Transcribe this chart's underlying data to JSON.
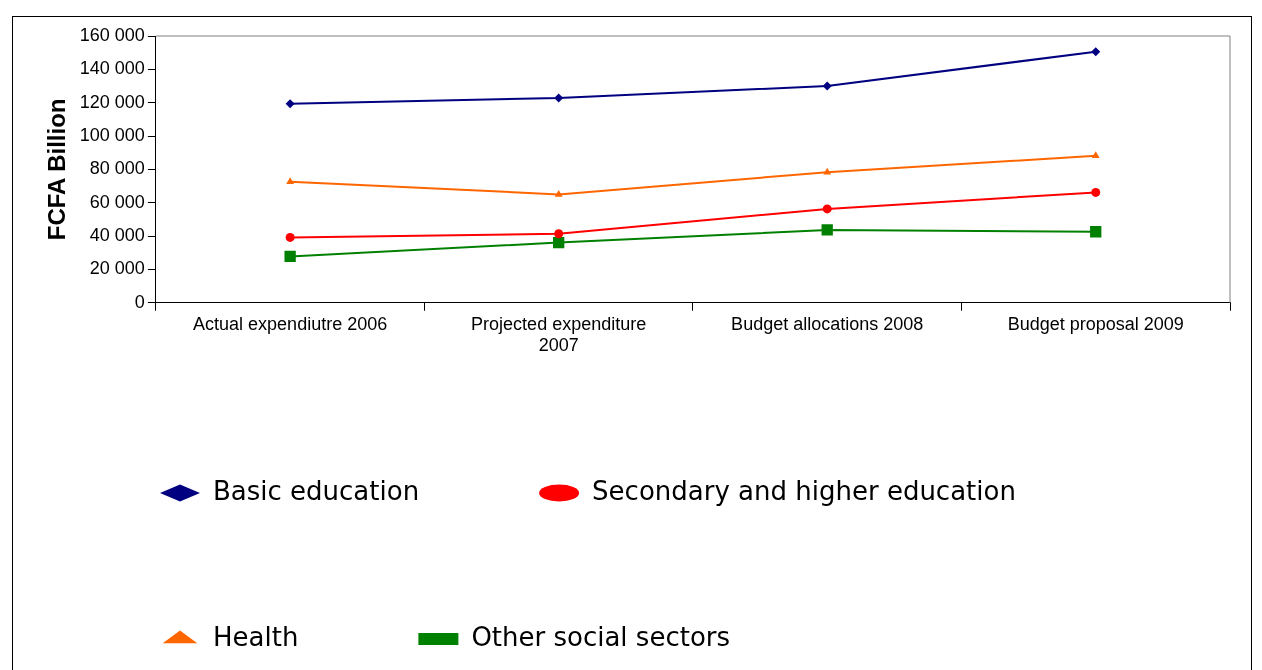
{
  "chart_data": {
    "type": "line",
    "ylabel": "FCFA Billion",
    "categories": [
      "Actual expendiutre 2006",
      "Projected expenditure 2007",
      "Budget allocations 2008",
      "Budget proposal 2009"
    ],
    "series": [
      {
        "name": "Basic education",
        "color": "#000080",
        "marker": "diamond",
        "values": [
          119400,
          122800,
          130000,
          150600
        ]
      },
      {
        "name": "Secondary and higher education",
        "color": "#ff0000",
        "marker": "circle",
        "values": [
          39200,
          41400,
          56300,
          66200
        ]
      },
      {
        "name": "Health",
        "color": "#ff6600",
        "marker": "triangle",
        "values": [
          72600,
          65000,
          78300,
          88200
        ]
      },
      {
        "name": "Other social sectors",
        "color": "#008000",
        "marker": "square",
        "values": [
          27800,
          36100,
          43700,
          42600
        ]
      }
    ],
    "ylim": [
      0,
      160000
    ],
    "yticks": [
      {
        "value": 0,
        "label": "0"
      },
      {
        "value": 20000,
        "label": "20 000"
      },
      {
        "value": 40000,
        "label": "40 000"
      },
      {
        "value": 60000,
        "label": "60 000"
      },
      {
        "value": 80000,
        "label": "80 000"
      },
      {
        "value": 100000,
        "label": "100 000"
      },
      {
        "value": 120000,
        "label": "120 000"
      },
      {
        "value": 140000,
        "label": "140 000"
      },
      {
        "value": 160000,
        "label": "160 000"
      }
    ],
    "grid": false,
    "legend": "bottom"
  }
}
